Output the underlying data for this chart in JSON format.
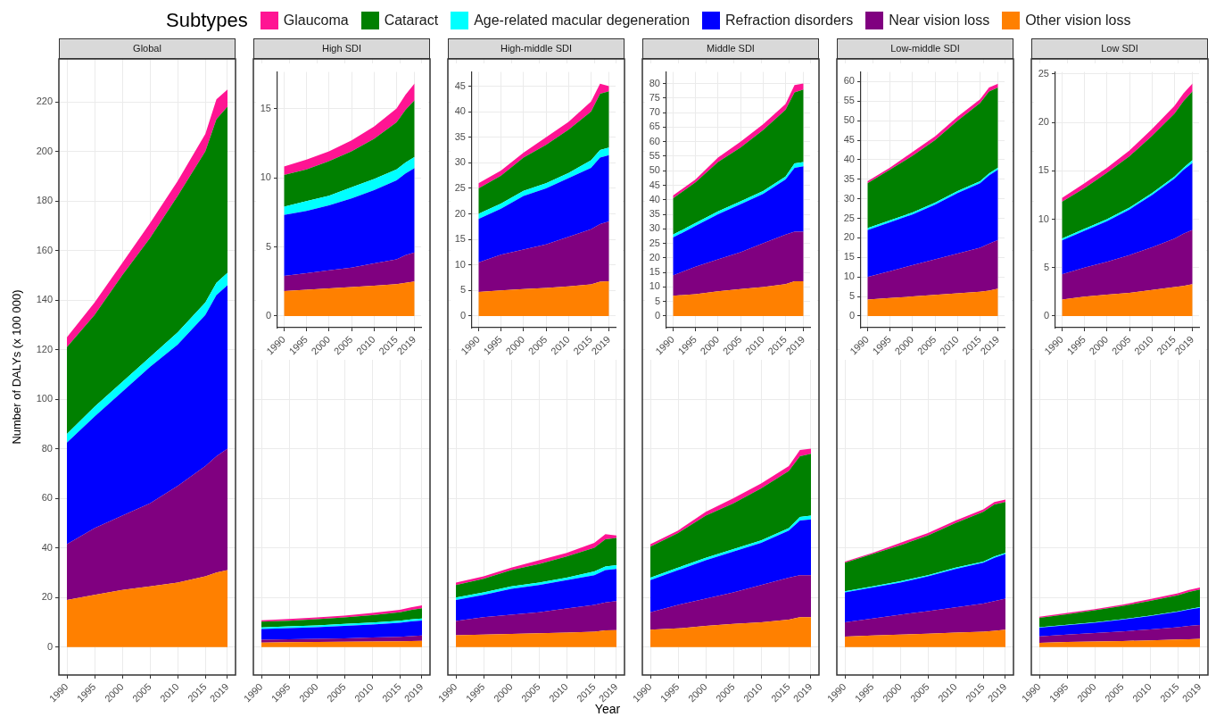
{
  "chart_data": [
    {
      "type": "area",
      "title": "Global",
      "ylabel": "Number of DALYs (x 100 000)",
      "legend_title": "Subtypes",
      "legend": "top",
      "stacked": true,
      "grid": true,
      "x": [
        1990,
        1995,
        2000,
        2005,
        2010,
        2015,
        2017,
        2019
      ],
      "xlim": [
        1988.55,
        2020.45
      ],
      "xticks": [
        1990,
        1995,
        2000,
        2005,
        2010,
        2015,
        2019
      ],
      "ylim": [
        -11.3,
        237.3
      ],
      "yticks": [
        0,
        20,
        40,
        60,
        80,
        100,
        120,
        140,
        160,
        180,
        200,
        220
      ],
      "series": [
        {
          "name": "Other vision loss",
          "color": "#ff8000",
          "values": [
            19,
            21,
            23,
            24.5,
            26,
            28.5,
            30,
            31
          ]
        },
        {
          "name": "Near vision loss",
          "color": "#800080",
          "values": [
            22.5,
            27,
            30,
            33.5,
            39,
            44.5,
            47,
            49
          ]
        },
        {
          "name": "Refraction disorders",
          "color": "#0000ff",
          "values": [
            41,
            45,
            50,
            55,
            57,
            61,
            65,
            66
          ]
        },
        {
          "name": "Age-related macular degeneration",
          "color": "#00ffff",
          "values": [
            3.5,
            4,
            4,
            4,
            5,
            5,
            5,
            5
          ]
        },
        {
          "name": "Cataract",
          "color": "#008000",
          "values": [
            35,
            37,
            43,
            48,
            55,
            61,
            66,
            67
          ]
        },
        {
          "name": "Glaucoma",
          "color": "#ff1493",
          "values": [
            4,
            5,
            5,
            6,
            6,
            7,
            8,
            7
          ]
        }
      ]
    },
    {
      "type": "area",
      "title": "High SDI",
      "stacked": true,
      "grid": true,
      "tick_labels": "x",
      "x": [
        1990,
        1995,
        2000,
        2005,
        2010,
        2015,
        2017,
        2019
      ],
      "xlim": [
        1988.55,
        2020.45
      ],
      "xticks": [
        1990,
        1995,
        2000,
        2005,
        2010,
        2015,
        2019
      ],
      "ylim": [
        -11.3,
        237.3
      ],
      "yticks": [
        0,
        20,
        40,
        60,
        80,
        100,
        120,
        140,
        160,
        180,
        200,
        220
      ],
      "series": [
        {
          "color": "#ff8000",
          "values": [
            1.8,
            1.9,
            2.0,
            2.1,
            2.2,
            2.3,
            2.4,
            2.5
          ]
        },
        {
          "color": "#800080",
          "values": [
            1.1,
            1.2,
            1.3,
            1.4,
            1.6,
            1.8,
            2.0,
            2.1
          ]
        },
        {
          "color": "#0000ff",
          "values": [
            4.4,
            4.5,
            4.7,
            5.0,
            5.3,
            5.7,
            5.9,
            6.1
          ]
        },
        {
          "color": "#00ffff",
          "values": [
            0.6,
            0.7,
            0.7,
            0.8,
            0.8,
            0.8,
            0.8,
            0.8
          ]
        },
        {
          "color": "#008000",
          "values": [
            2.3,
            2.3,
            2.5,
            2.6,
            2.9,
            3.4,
            3.8,
            4.1
          ]
        },
        {
          "color": "#ff1493",
          "values": [
            0.6,
            0.7,
            0.7,
            0.8,
            0.9,
            1.0,
            1.1,
            1.2
          ]
        }
      ]
    },
    {
      "type": "area",
      "stacked": true,
      "grid": true,
      "x": [
        1990,
        1995,
        2000,
        2005,
        2010,
        2015,
        2017,
        2019
      ],
      "xlim": [
        1988.55,
        2020.45
      ],
      "xticks": [
        1990,
        1995,
        2000,
        2005,
        2010,
        2015,
        2019
      ],
      "ylim": [
        -0.84,
        17.64
      ],
      "yticks": [
        0,
        5,
        10,
        15
      ],
      "series": [
        {
          "color": "#ff8000",
          "values": [
            1.8,
            1.9,
            2.0,
            2.1,
            2.2,
            2.3,
            2.4,
            2.5
          ]
        },
        {
          "color": "#800080",
          "values": [
            1.1,
            1.2,
            1.3,
            1.4,
            1.6,
            1.8,
            2.0,
            2.1
          ]
        },
        {
          "color": "#0000ff",
          "values": [
            4.4,
            4.5,
            4.7,
            5.0,
            5.3,
            5.7,
            5.9,
            6.1
          ]
        },
        {
          "color": "#00ffff",
          "values": [
            0.6,
            0.7,
            0.7,
            0.8,
            0.8,
            0.8,
            0.8,
            0.8
          ]
        },
        {
          "color": "#008000",
          "values": [
            2.3,
            2.3,
            2.5,
            2.6,
            2.9,
            3.4,
            3.8,
            4.1
          ]
        },
        {
          "color": "#ff1493",
          "values": [
            0.6,
            0.7,
            0.7,
            0.8,
            0.9,
            1.0,
            1.1,
            1.2
          ]
        }
      ]
    },
    {
      "type": "area",
      "title": "High-middle SDI",
      "xlabel": "Year",
      "stacked": true,
      "grid": true,
      "tick_labels": "x",
      "x": [
        1990,
        1995,
        2000,
        2005,
        2010,
        2015,
        2017,
        2019
      ],
      "xlim": [
        1988.55,
        2020.45
      ],
      "xticks": [
        1990,
        1995,
        2000,
        2005,
        2010,
        2015,
        2019
      ],
      "ylim": [
        -11.3,
        237.3
      ],
      "yticks": [
        0,
        20,
        40,
        60,
        80,
        100,
        120,
        140,
        160,
        180,
        200,
        220
      ],
      "series": [
        {
          "color": "#ff8000",
          "values": [
            4.7,
            5.0,
            5.3,
            5.5,
            5.8,
            6.2,
            6.7,
            6.8
          ]
        },
        {
          "color": "#800080",
          "values": [
            5.8,
            7,
            7.7,
            8.5,
            9.7,
            10.8,
            11.3,
            11.7
          ]
        },
        {
          "color": "#0000ff",
          "values": [
            8.5,
            9,
            10.5,
            11,
            11.5,
            12,
            13,
            13
          ]
        },
        {
          "color": "#00ffff",
          "values": [
            1,
            1,
            1,
            1,
            1,
            1.5,
            1.5,
            1.5
          ]
        },
        {
          "color": "#008000",
          "values": [
            5,
            5.5,
            6.5,
            7.5,
            8.5,
            9.5,
            11,
            11
          ]
        },
        {
          "color": "#ff1493",
          "values": [
            1,
            1,
            1,
            1.5,
            1.5,
            2,
            2,
            1
          ]
        }
      ]
    },
    {
      "type": "area",
      "stacked": true,
      "grid": true,
      "x": [
        1990,
        1995,
        2000,
        2005,
        2010,
        2015,
        2017,
        2019
      ],
      "xlim": [
        1988.55,
        2020.45
      ],
      "xticks": [
        1990,
        1995,
        2000,
        2005,
        2010,
        2015,
        2019
      ],
      "ylim": [
        -2.28,
        47.78
      ],
      "yticks": [
        0,
        5,
        10,
        15,
        20,
        25,
        30,
        35,
        40,
        45
      ],
      "series": [
        {
          "color": "#ff8000",
          "values": [
            4.7,
            5.0,
            5.3,
            5.5,
            5.8,
            6.2,
            6.7,
            6.8
          ]
        },
        {
          "color": "#800080",
          "values": [
            5.8,
            7,
            7.7,
            8.5,
            9.7,
            10.8,
            11.3,
            11.7
          ]
        },
        {
          "color": "#0000ff",
          "values": [
            8.5,
            9,
            10.5,
            11,
            11.5,
            12,
            13,
            13
          ]
        },
        {
          "color": "#00ffff",
          "values": [
            1,
            1,
            1,
            1,
            1,
            1.5,
            1.5,
            1.5
          ]
        },
        {
          "color": "#008000",
          "values": [
            5,
            5.5,
            6.5,
            7.5,
            8.5,
            9.5,
            11,
            11
          ]
        },
        {
          "color": "#ff1493",
          "values": [
            1,
            1,
            1,
            1.5,
            1.5,
            2,
            2,
            1
          ]
        }
      ]
    },
    {
      "type": "area",
      "title": "Middle SDI",
      "stacked": true,
      "grid": true,
      "tick_labels": "x",
      "x": [
        1990,
        1995,
        2000,
        2005,
        2010,
        2015,
        2017,
        2019
      ],
      "xlim": [
        1988.55,
        2020.45
      ],
      "xticks": [
        1990,
        1995,
        2000,
        2005,
        2010,
        2015,
        2019
      ],
      "ylim": [
        -11.3,
        237.3
      ],
      "yticks": [
        0,
        20,
        40,
        60,
        80,
        100,
        120,
        140,
        160,
        180,
        200,
        220
      ],
      "series": [
        {
          "color": "#ff8000",
          "values": [
            7,
            7.5,
            8.5,
            9.3,
            10,
            11,
            12,
            12
          ]
        },
        {
          "color": "#800080",
          "values": [
            7,
            9.5,
            11,
            12.7,
            15,
            17,
            17,
            17
          ]
        },
        {
          "color": "#0000ff",
          "values": [
            13,
            14,
            15.5,
            16.5,
            17,
            19,
            22,
            22.5
          ]
        },
        {
          "color": "#00ffff",
          "values": [
            1,
            1,
            1,
            1,
            1,
            1,
            1.5,
            1.5
          ]
        },
        {
          "color": "#008000",
          "values": [
            12.5,
            14,
            17,
            18.5,
            21,
            23,
            24.5,
            25
          ]
        },
        {
          "color": "#ff1493",
          "values": [
            1,
            1,
            1.5,
            2,
            2,
            2,
            2.5,
            2
          ]
        }
      ]
    },
    {
      "type": "area",
      "stacked": true,
      "grid": true,
      "x": [
        1990,
        1995,
        2000,
        2005,
        2010,
        2015,
        2017,
        2019
      ],
      "xlim": [
        1988.55,
        2020.45
      ],
      "xticks": [
        1990,
        1995,
        2000,
        2005,
        2010,
        2015,
        2019
      ],
      "ylim": [
        -4,
        84
      ],
      "yticks": [
        0,
        5,
        10,
        15,
        20,
        25,
        30,
        35,
        40,
        45,
        50,
        55,
        60,
        65,
        70,
        75,
        80
      ],
      "series": [
        {
          "color": "#ff8000",
          "values": [
            7,
            7.5,
            8.5,
            9.3,
            10,
            11,
            12,
            12
          ]
        },
        {
          "color": "#800080",
          "values": [
            7,
            9.5,
            11,
            12.7,
            15,
            17,
            17,
            17
          ]
        },
        {
          "color": "#0000ff",
          "values": [
            13,
            14,
            15.5,
            16.5,
            17,
            19,
            22,
            22.5
          ]
        },
        {
          "color": "#00ffff",
          "values": [
            1,
            1,
            1,
            1,
            1,
            1,
            1.5,
            1.5
          ]
        },
        {
          "color": "#008000",
          "values": [
            12.5,
            14,
            17,
            18.5,
            21,
            23,
            24.5,
            25
          ]
        },
        {
          "color": "#ff1493",
          "values": [
            1,
            1,
            1.5,
            2,
            2,
            2,
            2.5,
            2
          ]
        }
      ]
    },
    {
      "type": "area",
      "title": "Low-middle SDI",
      "stacked": true,
      "grid": true,
      "tick_labels": "x",
      "x": [
        1990,
        1995,
        2000,
        2005,
        2010,
        2015,
        2017,
        2019
      ],
      "xlim": [
        1988.55,
        2020.45
      ],
      "xticks": [
        1990,
        1995,
        2000,
        2005,
        2010,
        2015,
        2019
      ],
      "ylim": [
        -11.3,
        237.3
      ],
      "yticks": [
        0,
        20,
        40,
        60,
        80,
        100,
        120,
        140,
        160,
        180,
        200,
        220
      ],
      "series": [
        {
          "color": "#ff8000",
          "values": [
            4.2,
            4.6,
            5.0,
            5.4,
            5.8,
            6.2,
            6.5,
            7
          ]
        },
        {
          "color": "#800080",
          "values": [
            5.8,
            6.9,
            8,
            9.1,
            10.2,
            11.3,
            12,
            12.5
          ]
        },
        {
          "color": "#0000ff",
          "values": [
            12,
            12.5,
            13,
            14,
            15.5,
            16.5,
            17.5,
            18
          ]
        },
        {
          "color": "#00ffff",
          "values": [
            0.5,
            0.5,
            0.5,
            0.5,
            0.5,
            0.5,
            0.5,
            0.5
          ]
        },
        {
          "color": "#008000",
          "values": [
            11.5,
            13,
            14.5,
            16,
            18,
            20,
            21,
            20.5
          ]
        },
        {
          "color": "#ff1493",
          "values": [
            0.5,
            0.5,
            1,
            1,
            1,
            1,
            1,
            1
          ]
        }
      ]
    },
    {
      "type": "area",
      "stacked": true,
      "grid": true,
      "x": [
        1990,
        1995,
        2000,
        2005,
        2010,
        2015,
        2017,
        2019
      ],
      "xlim": [
        1988.55,
        2020.45
      ],
      "xticks": [
        1990,
        1995,
        2000,
        2005,
        2010,
        2015,
        2019
      ],
      "ylim": [
        -2.98,
        62.48
      ],
      "yticks": [
        0,
        5,
        10,
        15,
        20,
        25,
        30,
        35,
        40,
        45,
        50,
        55,
        60
      ],
      "series": [
        {
          "color": "#ff8000",
          "values": [
            4.2,
            4.6,
            5.0,
            5.4,
            5.8,
            6.2,
            6.5,
            7
          ]
        },
        {
          "color": "#800080",
          "values": [
            5.8,
            6.9,
            8,
            9.1,
            10.2,
            11.3,
            12,
            12.5
          ]
        },
        {
          "color": "#0000ff",
          "values": [
            12,
            12.5,
            13,
            14,
            15.5,
            16.5,
            17.5,
            18
          ]
        },
        {
          "color": "#00ffff",
          "values": [
            0.5,
            0.5,
            0.5,
            0.5,
            0.5,
            0.5,
            0.5,
            0.5
          ]
        },
        {
          "color": "#008000",
          "values": [
            11.5,
            13,
            14.5,
            16,
            18,
            20,
            21,
            20.5
          ]
        },
        {
          "color": "#ff1493",
          "values": [
            0.5,
            0.5,
            1,
            1,
            1,
            1,
            1,
            1
          ]
        }
      ]
    },
    {
      "type": "area",
      "title": "Low SDI",
      "stacked": true,
      "grid": true,
      "tick_labels": "x",
      "x": [
        1990,
        1995,
        2000,
        2005,
        2010,
        2015,
        2017,
        2019
      ],
      "xlim": [
        1988.55,
        2020.45
      ],
      "xticks": [
        1990,
        1995,
        2000,
        2005,
        2010,
        2015,
        2019
      ],
      "ylim": [
        -11.3,
        237.3
      ],
      "yticks": [
        0,
        20,
        40,
        60,
        80,
        100,
        120,
        140,
        160,
        180,
        200,
        220
      ],
      "series": [
        {
          "color": "#ff8000",
          "values": [
            1.7,
            2.0,
            2.2,
            2.4,
            2.7,
            3.0,
            3.1,
            3.3
          ]
        },
        {
          "color": "#800080",
          "values": [
            2.6,
            3.0,
            3.4,
            3.9,
            4.4,
            5.0,
            5.4,
            5.6
          ]
        },
        {
          "color": "#0000ff",
          "values": [
            3.5,
            3.8,
            4.2,
            4.7,
            5.4,
            6.2,
            6.6,
            6.9
          ]
        },
        {
          "color": "#00ffff",
          "values": [
            0.2,
            0.2,
            0.2,
            0.2,
            0.2,
            0.2,
            0.2,
            0.3
          ]
        },
        {
          "color": "#008000",
          "values": [
            3.8,
            4.2,
            4.8,
            5.3,
            5.9,
            6.5,
            6.9,
            7.1
          ]
        },
        {
          "color": "#ff1493",
          "values": [
            0.4,
            0.5,
            0.5,
            0.6,
            0.7,
            0.8,
            0.8,
            0.8
          ]
        }
      ]
    },
    {
      "type": "area",
      "stacked": true,
      "grid": true,
      "x": [
        1990,
        1995,
        2000,
        2005,
        2010,
        2015,
        2017,
        2019
      ],
      "xlim": [
        1988.55,
        2020.45
      ],
      "xticks": [
        1990,
        1995,
        2000,
        2005,
        2010,
        2015,
        2019
      ],
      "ylim": [
        -1.2,
        25.2
      ],
      "yticks": [
        0,
        5,
        10,
        15,
        20,
        25
      ],
      "series": [
        {
          "color": "#ff8000",
          "values": [
            1.7,
            2.0,
            2.2,
            2.4,
            2.7,
            3.0,
            3.1,
            3.3
          ]
        },
        {
          "color": "#800080",
          "values": [
            2.6,
            3.0,
            3.4,
            3.9,
            4.4,
            5.0,
            5.4,
            5.6
          ]
        },
        {
          "color": "#0000ff",
          "values": [
            3.5,
            3.8,
            4.2,
            4.7,
            5.4,
            6.2,
            6.6,
            6.9
          ]
        },
        {
          "color": "#00ffff",
          "values": [
            0.2,
            0.2,
            0.2,
            0.2,
            0.2,
            0.2,
            0.2,
            0.3
          ]
        },
        {
          "color": "#008000",
          "values": [
            3.8,
            4.2,
            4.8,
            5.3,
            5.9,
            6.5,
            6.9,
            7.1
          ]
        },
        {
          "color": "#ff1493",
          "values": [
            0.4,
            0.5,
            0.5,
            0.6,
            0.7,
            0.8,
            0.8,
            0.8
          ]
        }
      ]
    }
  ]
}
